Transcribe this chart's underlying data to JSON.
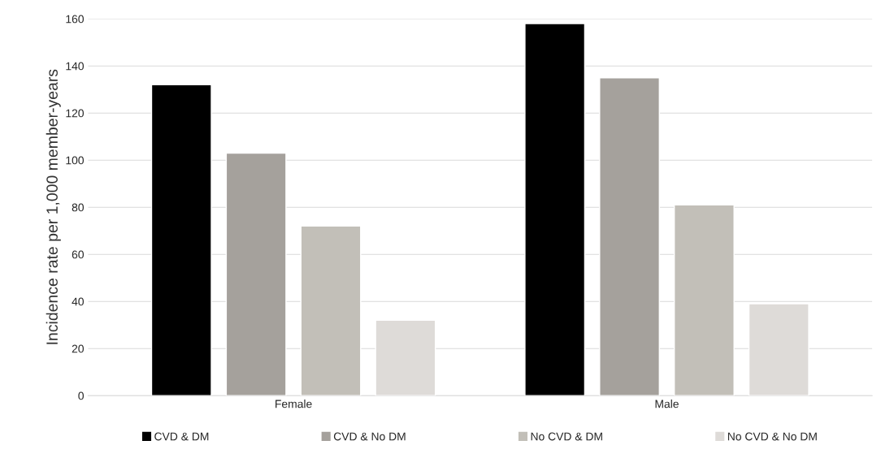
{
  "chart_data": {
    "type": "bar",
    "ylabel": "Incidence rate per 1,000 member-years",
    "categories": [
      "Female",
      "Male"
    ],
    "series": [
      {
        "name": "CVD & DM",
        "color": "#000000",
        "values": [
          132,
          158
        ]
      },
      {
        "name": "CVD & No DM",
        "color": "#a5a19c",
        "values": [
          103,
          135
        ]
      },
      {
        "name": "No CVD & DM",
        "color": "#c2bfb8",
        "values": [
          72,
          81
        ]
      },
      {
        "name": "No CVD & No DM",
        "color": "#dedbd8",
        "values": [
          32,
          39
        ]
      }
    ],
    "ylim": [
      0,
      160
    ],
    "yticks": [
      0,
      20,
      40,
      60,
      80,
      100,
      120,
      140,
      160
    ],
    "grid": "y",
    "legend": "bottom"
  }
}
